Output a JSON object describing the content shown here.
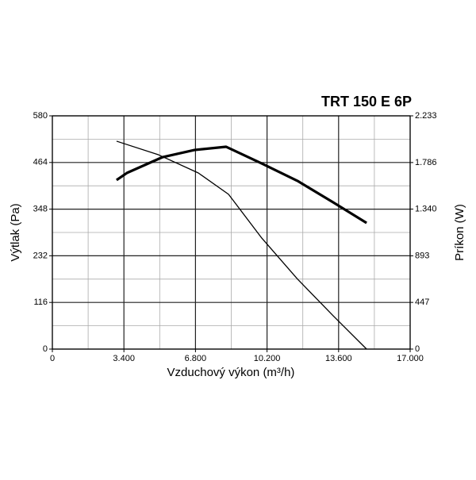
{
  "chart_data": {
    "type": "line",
    "title": "TRT 150 E 6P",
    "xlabel": "Vzduchový výkon (m³/h)",
    "ylabel": "Výtlak (Pa)",
    "y2label": "Príkon (W)",
    "xlim": [
      0,
      17000
    ],
    "xticks": [
      0,
      {
        "value": 3400,
        "label": "3.400"
      },
      {
        "value": 6800,
        "label": "6.800"
      },
      {
        "value": 10200,
        "label": "10.200"
      },
      {
        "value": 13600,
        "label": "13.600"
      },
      {
        "value": 17000,
        "label": "17.000"
      }
    ],
    "ylim": [
      0,
      580
    ],
    "yticks": [
      0,
      116,
      232,
      348,
      464,
      580
    ],
    "y2lim": [
      0,
      2233
    ],
    "y2ticks": [
      0,
      447,
      893,
      {
        "value": 1340,
        "label": "1.340"
      },
      {
        "value": 1786,
        "label": "1.786"
      },
      {
        "value": 2233,
        "label": "2.233"
      }
    ],
    "grid": true,
    "minor_grid": true,
    "series": [
      {
        "color": "#000000",
        "width": 1.3,
        "x": [
          3050,
          5050,
          6935,
          8370,
          9950,
          11650,
          13340,
          14930
        ],
        "values": [
          517,
          483,
          438,
          385,
          276,
          174,
          83,
          0
        ]
      },
      {
        "color": "#000000",
        "width": 3.2,
        "axis": "y2",
        "x": [
          3050,
          3540,
          5240,
          6750,
          8250,
          9950,
          11650,
          13340,
          14930
        ],
        "values": [
          1618,
          1686,
          1838,
          1906,
          1937,
          1777,
          1610,
          1405,
          1208
        ]
      }
    ]
  }
}
